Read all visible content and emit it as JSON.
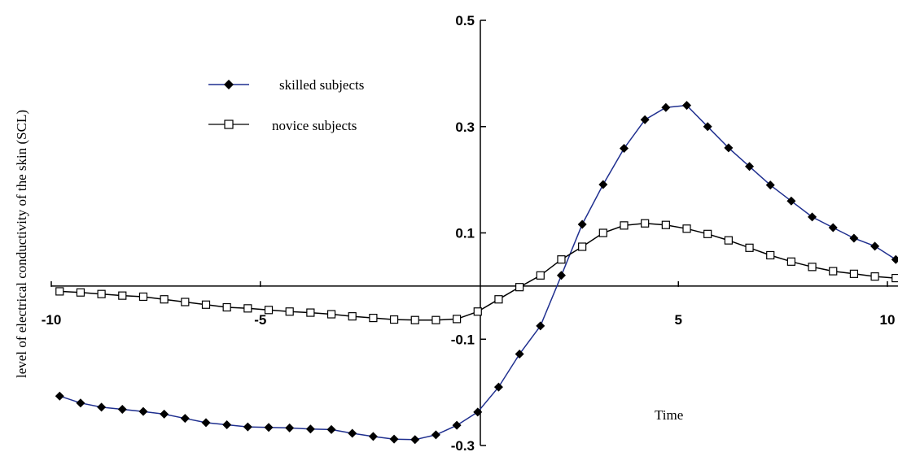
{
  "chart_data": {
    "type": "line",
    "title": "",
    "xlabel": "Time",
    "ylabel": "level of electrical conductivity of the skin (SCL)",
    "xlim": [
      -10,
      10
    ],
    "ylim": [
      -0.3,
      0.5
    ],
    "x_ticks": [
      -10,
      -5,
      5,
      10
    ],
    "x_tick_labels": [
      "-10",
      "-5",
      "5",
      "10"
    ],
    "y_ticks": [
      0.5,
      0.3,
      0.1,
      -0.1,
      -0.3
    ],
    "y_tick_labels": [
      "0.5",
      "0.3",
      "0.1",
      "-0.1",
      "-0.3"
    ],
    "grid": false,
    "legend_position": "top-left",
    "series": [
      {
        "name": "skilled subjects",
        "color": "#1f2f8f",
        "marker": "filled-diamond",
        "x": [
          -9.8,
          -9.3,
          -8.8,
          -8.3,
          -7.8,
          -7.3,
          -6.8,
          -6.3,
          -5.8,
          -5.3,
          -4.8,
          -4.3,
          -3.8,
          -3.3,
          -2.8,
          -2.3,
          -1.8,
          -1.3,
          -0.8,
          -0.3,
          0.2,
          0.7,
          1.2,
          1.7,
          2.2,
          2.7,
          3.2,
          3.7,
          4.2,
          4.7,
          5.2,
          5.7,
          6.2,
          6.7,
          7.2,
          7.7,
          8.2,
          8.7,
          9.2,
          9.7,
          10.2
        ],
        "y": [
          -0.207,
          -0.22,
          -0.228,
          -0.232,
          -0.236,
          -0.241,
          -0.249,
          -0.257,
          -0.261,
          -0.265,
          -0.266,
          -0.267,
          -0.269,
          -0.27,
          -0.277,
          -0.283,
          -0.288,
          -0.289,
          -0.28,
          -0.262,
          -0.237,
          -0.19,
          -0.128,
          -0.075,
          0.02,
          0.116,
          0.191,
          0.259,
          0.313,
          0.336,
          0.34,
          0.3,
          0.26,
          0.225,
          0.19,
          0.16,
          0.13,
          0.11,
          0.09,
          0.075,
          0.05
        ]
      },
      {
        "name": "novice subjects",
        "color": "#000000",
        "marker": "hollow-square",
        "x": [
          -9.8,
          -9.3,
          -8.8,
          -8.3,
          -7.8,
          -7.3,
          -6.8,
          -6.3,
          -5.8,
          -5.3,
          -4.8,
          -4.3,
          -3.8,
          -3.3,
          -2.8,
          -2.3,
          -1.8,
          -1.3,
          -0.8,
          -0.3,
          0.2,
          0.7,
          1.2,
          1.7,
          2.2,
          2.7,
          3.2,
          3.7,
          4.2,
          4.7,
          5.2,
          5.7,
          6.2,
          6.7,
          7.2,
          7.7,
          8.2,
          8.7,
          9.2,
          9.7,
          10.2
        ],
        "y": [
          -0.01,
          -0.012,
          -0.015,
          -0.018,
          -0.02,
          -0.025,
          -0.03,
          -0.035,
          -0.04,
          -0.042,
          -0.045,
          -0.048,
          -0.05,
          -0.053,
          -0.057,
          -0.06,
          -0.063,
          -0.064,
          -0.064,
          -0.062,
          -0.048,
          -0.025,
          -0.002,
          0.02,
          0.05,
          0.074,
          0.1,
          0.114,
          0.118,
          0.115,
          0.108,
          0.098,
          0.086,
          0.072,
          0.058,
          0.046,
          0.036,
          0.028,
          0.023,
          0.018,
          0.015
        ]
      }
    ]
  }
}
